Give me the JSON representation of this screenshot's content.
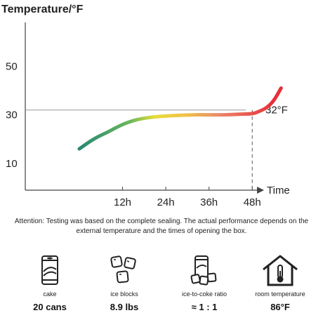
{
  "chart_data": {
    "type": "line",
    "title": "Temperature/°F",
    "xlabel": "Time",
    "ylabel": "",
    "xlim": [
      -15,
      54
    ],
    "ylim": [
      -1,
      68
    ],
    "x_ticks": [
      12,
      24,
      36,
      48
    ],
    "x_tick_labels": [
      "12h",
      "24h",
      "36h",
      "48h"
    ],
    "y_ticks": [
      10,
      30,
      50
    ],
    "y_tick_labels": [
      "10",
      "30",
      "50"
    ],
    "grid": false,
    "reference_line": {
      "y": 32,
      "label": "32°F"
    },
    "marker_x": 48,
    "series": [
      {
        "x": [
          0,
          4,
          8,
          12,
          16,
          20,
          24,
          28,
          32,
          36,
          40,
          44,
          48,
          50,
          52,
          54,
          56
        ],
        "y": [
          16,
          20,
          23,
          26,
          28,
          29,
          29.5,
          29.8,
          30,
          30,
          30,
          30.2,
          30.5,
          31.5,
          33,
          36,
          41
        ],
        "colors": [
          "#1b5e6e",
          "#2a8a72",
          "#6cb85a",
          "#e8dc3c",
          "#f0c04a",
          "#ea8a6a",
          "#e8303a"
        ]
      }
    ]
  },
  "note": "Attention: Testing was based on the complete sealing. The actual performance depends on the external temperature and the times of opening the box.",
  "icons": [
    {
      "icon": "can-icon",
      "label": "cake",
      "value": "20 cans"
    },
    {
      "icon": "ice-blocks-icon",
      "label": "ice blocks",
      "value": "8.9 lbs"
    },
    {
      "icon": "ice-coke-ratio-icon",
      "label": "ice-to-coke ratio",
      "value": "≈ 1 : 1"
    },
    {
      "icon": "house-thermometer-icon",
      "label": "room temperature",
      "value": "86°F"
    }
  ]
}
